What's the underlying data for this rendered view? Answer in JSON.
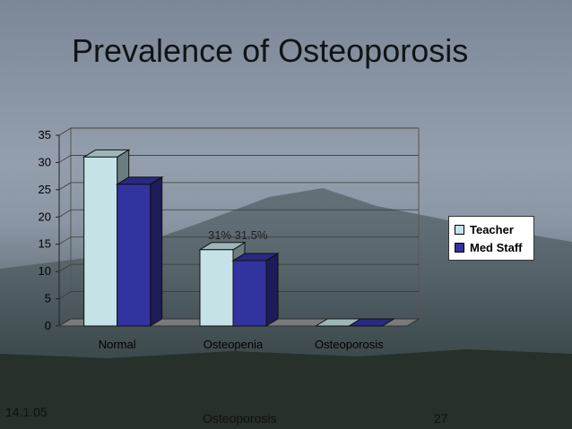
{
  "slide": {
    "title": "Prevalence of Osteoporosis",
    "footer_date": "14.1.05",
    "footer_topic": "Osteoporosis",
    "footer_page": "27"
  },
  "colors": {
    "teacher": "#c5e3e6",
    "med_staff": "#3333a0",
    "floor": "#7a7a7a"
  },
  "chart_data": {
    "type": "bar",
    "categories": [
      "Normal",
      "Osteopenia",
      "Osteoporosis"
    ],
    "series": [
      {
        "name": "Teacher",
        "values": [
          31,
          14,
          0
        ]
      },
      {
        "name": "Med Staff",
        "values": [
          26,
          12,
          0
        ]
      }
    ],
    "y_ticks": [
      "0",
      "5",
      "10",
      "15",
      "20",
      "25",
      "30",
      "35"
    ],
    "ylim": [
      0,
      35
    ],
    "annotation": "31%  31.5%",
    "legend_position": "right",
    "grid": true
  }
}
